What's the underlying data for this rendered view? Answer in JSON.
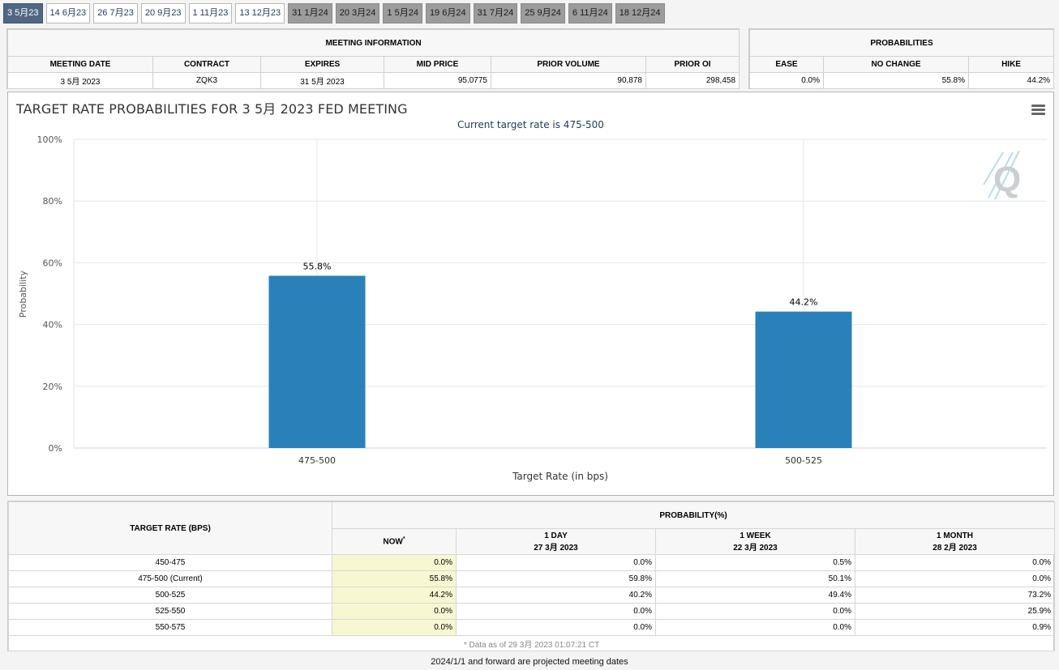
{
  "tabs": [
    {
      "label": "3 5月23",
      "state": "active"
    },
    {
      "label": "14 6月23",
      "state": "normal"
    },
    {
      "label": "26 7月23",
      "state": "normal"
    },
    {
      "label": "20 9月23",
      "state": "normal"
    },
    {
      "label": "1 11月23",
      "state": "normal"
    },
    {
      "label": "13 12月23",
      "state": "normal"
    },
    {
      "label": "31 1月24",
      "state": "future"
    },
    {
      "label": "20 3月24",
      "state": "future"
    },
    {
      "label": "1 5月24",
      "state": "future"
    },
    {
      "label": "19 6月24",
      "state": "future"
    },
    {
      "label": "31 7月24",
      "state": "future"
    },
    {
      "label": "25 9月24",
      "state": "future"
    },
    {
      "label": "6 11月24",
      "state": "future"
    },
    {
      "label": "18 12月24",
      "state": "future"
    }
  ],
  "meeting_info": {
    "title": "MEETING INFORMATION",
    "headers": [
      "MEETING DATE",
      "CONTRACT",
      "EXPIRES",
      "MID PRICE",
      "PRIOR VOLUME",
      "PRIOR OI"
    ],
    "values": [
      "3 5月 2023",
      "ZQK3",
      "31 5月 2023",
      "95.0775",
      "90,878",
      "298,458"
    ]
  },
  "probabilities": {
    "title": "PROBABILITIES",
    "headers": [
      "EASE",
      "NO CHANGE",
      "HIKE"
    ],
    "values": [
      "0.0%",
      "55.8%",
      "44.2%"
    ]
  },
  "chart": {
    "title": "TARGET RATE PROBABILITIES FOR 3 5月 2023 FED MEETING",
    "subtitle": "Current target rate is 475-500",
    "menu_icon": "hamburger-menu-icon",
    "logo_icon": "q-logo-icon"
  },
  "chart_data": {
    "type": "bar",
    "categories": [
      "475-500",
      "500-525"
    ],
    "values": [
      55.8,
      44.2
    ],
    "data_labels": [
      "55.8%",
      "44.2%"
    ],
    "title": "TARGET RATE PROBABILITIES FOR 3 5月 2023 FED MEETING",
    "subtitle": "Current target rate is 475-500",
    "xlabel": "Target Rate (in bps)",
    "ylabel": "Probability",
    "ylim": [
      0,
      100
    ],
    "yticks": [
      "0%",
      "20%",
      "40%",
      "60%",
      "80%",
      "100%"
    ],
    "grid": true,
    "bar_color": "#2a80b9"
  },
  "prob_table": {
    "target_header": "TARGET RATE (BPS)",
    "prob_header": "PROBABILITY(%)",
    "col_now": "NOW",
    "col_now_mark": "*",
    "col_1day": {
      "label": "1 DAY",
      "date": "27 3月 2023"
    },
    "col_1week": {
      "label": "1 WEEK",
      "date": "22 3月 2023"
    },
    "col_1month": {
      "label": "1 MONTH",
      "date": "28 2月 2023"
    },
    "rows": [
      {
        "rate": "450-475",
        "now": "0.0%",
        "day": "0.0%",
        "week": "0.5%",
        "month": "0.0%"
      },
      {
        "rate": "475-500 (Current)",
        "now": "55.8%",
        "day": "59.8%",
        "week": "50.1%",
        "month": "0.0%"
      },
      {
        "rate": "500-525",
        "now": "44.2%",
        "day": "40.2%",
        "week": "49.4%",
        "month": "73.2%"
      },
      {
        "rate": "525-550",
        "now": "0.0%",
        "day": "0.0%",
        "week": "0.0%",
        "month": "25.9%"
      },
      {
        "rate": "550-575",
        "now": "0.0%",
        "day": "0.0%",
        "week": "0.0%",
        "month": "0.9%"
      }
    ],
    "footnote": "* Data as of 29 3月 2023 01:07:21 CT"
  },
  "bottom_note": "2024/1/1 and forward are projected meeting dates"
}
